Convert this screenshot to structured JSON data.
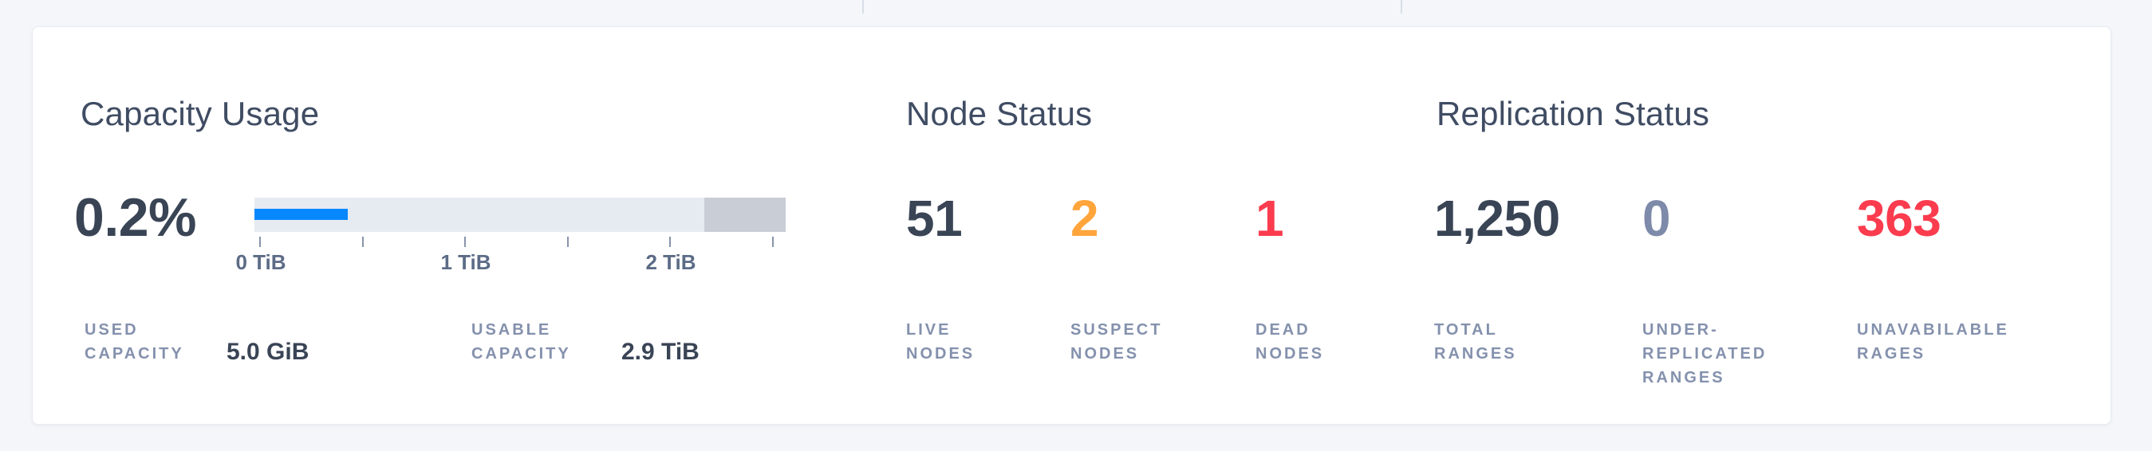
{
  "colors": {
    "page_bg": "#f4f6fa",
    "card_bg": "#ffffff",
    "dark": "#394455",
    "title": "#3f4c63",
    "muted_label": "#8491ad",
    "tick_label": "#5c6b86",
    "orange": "#ffa53b",
    "red": "#fb3b4e",
    "muted_number": "#7e8aa9",
    "bar_blue": "#0788ff",
    "track_light": "#e6eaf1",
    "track_reserved": "#c9cdd6"
  },
  "capacity": {
    "title": "Capacity Usage",
    "used_percent": "0.2%",
    "chart": {
      "type": "bar",
      "title": "Capacity Usage",
      "used_percent_value": 0.2,
      "used_capacity": "5.0 GiB",
      "usable_capacity": "2.9 TiB",
      "axis_unit": "TiB",
      "tick_labels": [
        "0 TiB",
        "1 TiB",
        "2 TiB"
      ],
      "tick_count": 6,
      "used_bar_width": "17.5%",
      "reserved_segment_width": "15.3%"
    },
    "stats": [
      {
        "label_lines": [
          "USED",
          "CAPACITY"
        ],
        "value": "5.0 GiB"
      },
      {
        "label_lines": [
          "USABLE",
          "CAPACITY"
        ],
        "value": "2.9 TiB"
      }
    ]
  },
  "nodes": {
    "title": "Node Status",
    "stats": [
      {
        "value": "51",
        "label_lines": [
          "LIVE",
          "NODES"
        ]
      },
      {
        "value": "2",
        "label_lines": [
          "SUSPECT",
          "NODES"
        ]
      },
      {
        "value": "1",
        "label_lines": [
          "DEAD",
          "NODES"
        ]
      }
    ]
  },
  "replication": {
    "title": "Replication Status",
    "stats": [
      {
        "value": "1,250",
        "label_lines": [
          "TOTAL",
          "RANGES"
        ]
      },
      {
        "value": "0",
        "label_lines": [
          "UNDER-",
          "REPLICATED",
          "RANGES"
        ]
      },
      {
        "value": "363",
        "label_lines": [
          "UNAVABILABLE",
          "RAGES"
        ]
      }
    ]
  }
}
